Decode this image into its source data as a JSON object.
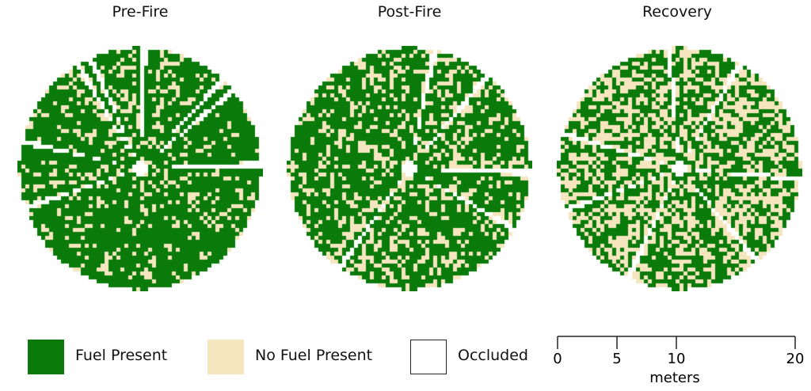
{
  "panels": [
    {
      "title": "Pre-Fire",
      "fuel_fraction": 0.8,
      "occluded_wedges_deg": [
        -2,
        161,
        193,
        239,
        246,
        272,
        313,
        320
      ]
    },
    {
      "title": "Post-Fire",
      "fuel_fraction": 0.72,
      "occluded_wedges_deg": [
        2,
        30,
        125,
        282,
        310
      ]
    },
    {
      "title": "Recovery",
      "fuel_fraction": 0.55,
      "occluded_wedges_deg": [
        5,
        50,
        115,
        160,
        197,
        265,
        300
      ]
    }
  ],
  "legend": {
    "fuel_present": {
      "label": "Fuel Present",
      "color": "#0a7a0a"
    },
    "no_fuel_present": {
      "label": "No Fuel Present",
      "color": "#f5e6bf"
    },
    "occluded": {
      "label": "Occluded",
      "color": "#ffffff"
    }
  },
  "scale_bar": {
    "ticks": [
      "0",
      "5",
      "10",
      "20"
    ],
    "unit": "meters"
  }
}
